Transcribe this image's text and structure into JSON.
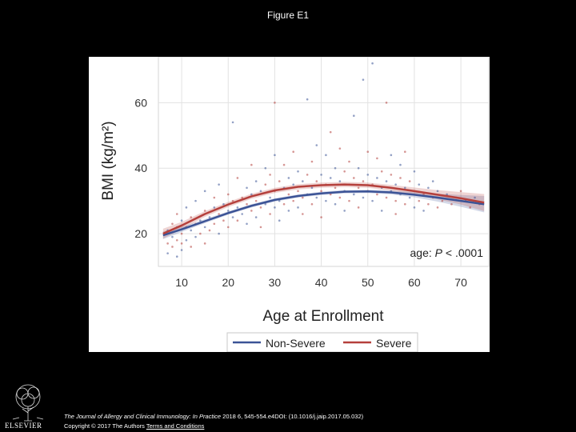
{
  "page": {
    "title": "Figure E1",
    "citation": {
      "journal": "The Journal of Allergy and Clinical Immunology: In Practice",
      "details": "2018 6, 545-554.e4DOI: (10.1016/j.jaip.2017.05.032)",
      "copyright": "Copyright © 2017 The Authors",
      "terms_link": "Terms and Conditions"
    },
    "publisher_logo": "ELSEVIER"
  },
  "chart_data": {
    "type": "scatter",
    "xlabel": "Age at Enrollment",
    "ylabel": "BMI (kg/m²)",
    "x_ticks": [
      10,
      20,
      30,
      40,
      50,
      60,
      70
    ],
    "y_ticks": [
      20,
      40,
      60
    ],
    "xlim": [
      5,
      76
    ],
    "ylim": [
      10,
      74
    ],
    "grid": true,
    "annotation": {
      "prefix": "age: ",
      "stat": "P",
      "rest": " < .0001"
    },
    "legend": {
      "placement": "bottom",
      "entries": [
        "Non-Severe",
        "Severe"
      ]
    },
    "colors": {
      "Non-Severe": "#3b5396",
      "Severe": "#b5403c"
    },
    "series": [
      {
        "name": "Non-Severe",
        "fit_x": [
          6,
          10,
          15,
          20,
          25,
          30,
          35,
          40,
          45,
          50,
          55,
          60,
          65,
          70,
          75
        ],
        "fit_y": [
          19.5,
          21.3,
          23.8,
          26.3,
          28.5,
          30.3,
          31.5,
          32.3,
          32.8,
          32.9,
          32.6,
          31.9,
          31.0,
          30.0,
          29.0
        ],
        "ci_half_width": [
          1.2,
          0.8,
          0.6,
          0.5,
          0.5,
          0.5,
          0.5,
          0.5,
          0.5,
          0.5,
          0.6,
          0.8,
          1.2,
          1.8,
          2.5
        ]
      },
      {
        "name": "Severe",
        "fit_x": [
          6,
          10,
          15,
          20,
          25,
          30,
          35,
          40,
          45,
          50,
          55,
          60,
          65,
          70,
          75
        ],
        "fit_y": [
          20.0,
          22.5,
          26.0,
          28.9,
          31.4,
          33.2,
          34.3,
          34.8,
          35.0,
          34.8,
          34.0,
          33.0,
          31.9,
          30.8,
          29.5
        ],
        "ci_half_width": [
          1.5,
          1.1,
          0.9,
          0.8,
          0.8,
          0.8,
          0.8,
          0.8,
          0.8,
          0.8,
          0.9,
          1.1,
          1.4,
          1.9,
          2.6
        ]
      }
    ],
    "scatter_points": [
      [
        7,
        14
      ],
      [
        7,
        17
      ],
      [
        7,
        21
      ],
      [
        8,
        16
      ],
      [
        8,
        19
      ],
      [
        8,
        23
      ],
      [
        9,
        13
      ],
      [
        9,
        18
      ],
      [
        9,
        22
      ],
      [
        9,
        26
      ],
      [
        10,
        15
      ],
      [
        10,
        20
      ],
      [
        10,
        24
      ],
      [
        10,
        17
      ],
      [
        11,
        18
      ],
      [
        11,
        22
      ],
      [
        11,
        28
      ],
      [
        12,
        16
      ],
      [
        12,
        21
      ],
      [
        12,
        25
      ],
      [
        13,
        19
      ],
      [
        13,
        23
      ],
      [
        13,
        30
      ],
      [
        14,
        20
      ],
      [
        14,
        24
      ],
      [
        15,
        17
      ],
      [
        15,
        22
      ],
      [
        15,
        27
      ],
      [
        15,
        33
      ],
      [
        16,
        21
      ],
      [
        16,
        25
      ],
      [
        17,
        23
      ],
      [
        17,
        28
      ],
      [
        17,
        31
      ],
      [
        18,
        20
      ],
      [
        18,
        26
      ],
      [
        18,
        35
      ],
      [
        19,
        24
      ],
      [
        19,
        29
      ],
      [
        20,
        22
      ],
      [
        20,
        27
      ],
      [
        20,
        32
      ],
      [
        21,
        25
      ],
      [
        21,
        30
      ],
      [
        21,
        54
      ],
      [
        22,
        24
      ],
      [
        22,
        28
      ],
      [
        22,
        37
      ],
      [
        23,
        26
      ],
      [
        23,
        31
      ],
      [
        24,
        23
      ],
      [
        24,
        29
      ],
      [
        24,
        34
      ],
      [
        25,
        27
      ],
      [
        25,
        32
      ],
      [
        25,
        41
      ],
      [
        26,
        25
      ],
      [
        26,
        30
      ],
      [
        26,
        36
      ],
      [
        27,
        28
      ],
      [
        27,
        33
      ],
      [
        27,
        22
      ],
      [
        28,
        29
      ],
      [
        28,
        35
      ],
      [
        28,
        40
      ],
      [
        29,
        26
      ],
      [
        29,
        31
      ],
      [
        29,
        38
      ],
      [
        30,
        28
      ],
      [
        30,
        33
      ],
      [
        30,
        44
      ],
      [
        30,
        60
      ],
      [
        31,
        30
      ],
      [
        31,
        36
      ],
      [
        31,
        24
      ],
      [
        32,
        29
      ],
      [
        32,
        34
      ],
      [
        32,
        41
      ],
      [
        33,
        27
      ],
      [
        33,
        32
      ],
      [
        33,
        37
      ],
      [
        34,
        30
      ],
      [
        34,
        35
      ],
      [
        34,
        45
      ],
      [
        35,
        28
      ],
      [
        35,
        33
      ],
      [
        35,
        39
      ],
      [
        36,
        31
      ],
      [
        36,
        36
      ],
      [
        36,
        26
      ],
      [
        37,
        32
      ],
      [
        37,
        38
      ],
      [
        37,
        61
      ],
      [
        38,
        29
      ],
      [
        38,
        34
      ],
      [
        38,
        42
      ],
      [
        39,
        31
      ],
      [
        39,
        36
      ],
      [
        39,
        47
      ],
      [
        40,
        33
      ],
      [
        40,
        38
      ],
      [
        40,
        25
      ],
      [
        41,
        30
      ],
      [
        41,
        35
      ],
      [
        41,
        44
      ],
      [
        42,
        32
      ],
      [
        42,
        37
      ],
      [
        42,
        51
      ],
      [
        43,
        29
      ],
      [
        43,
        34
      ],
      [
        43,
        40
      ],
      [
        44,
        31
      ],
      [
        44,
        36
      ],
      [
        44,
        46
      ],
      [
        45,
        33
      ],
      [
        45,
        39
      ],
      [
        45,
        27
      ],
      [
        46,
        30
      ],
      [
        46,
        35
      ],
      [
        46,
        42
      ],
      [
        47,
        32
      ],
      [
        47,
        37
      ],
      [
        47,
        56
      ],
      [
        48,
        34
      ],
      [
        48,
        40
      ],
      [
        48,
        28
      ],
      [
        49,
        31
      ],
      [
        49,
        36
      ],
      [
        49,
        67
      ],
      [
        50,
        33
      ],
      [
        50,
        38
      ],
      [
        50,
        45
      ],
      [
        51,
        30
      ],
      [
        51,
        35
      ],
      [
        51,
        72
      ],
      [
        52,
        32
      ],
      [
        52,
        37
      ],
      [
        52,
        43
      ],
      [
        53,
        34
      ],
      [
        53,
        39
      ],
      [
        53,
        27
      ],
      [
        54,
        31
      ],
      [
        54,
        36
      ],
      [
        54,
        60
      ],
      [
        55,
        33
      ],
      [
        55,
        38
      ],
      [
        55,
        44
      ],
      [
        56,
        30
      ],
      [
        56,
        35
      ],
      [
        56,
        26
      ],
      [
        57,
        32
      ],
      [
        57,
        37
      ],
      [
        57,
        41
      ],
      [
        58,
        29
      ],
      [
        58,
        34
      ],
      [
        58,
        45
      ],
      [
        59,
        31
      ],
      [
        59,
        36
      ],
      [
        60,
        28
      ],
      [
        60,
        33
      ],
      [
        60,
        39
      ],
      [
        61,
        30
      ],
      [
        61,
        35
      ],
      [
        62,
        32
      ],
      [
        62,
        27
      ],
      [
        63,
        29
      ],
      [
        63,
        34
      ],
      [
        64,
        31
      ],
      [
        64,
        36
      ],
      [
        65,
        28
      ],
      [
        65,
        33
      ],
      [
        66,
        30
      ],
      [
        67,
        32
      ],
      [
        68,
        29
      ],
      [
        69,
        31
      ],
      [
        70,
        33
      ],
      [
        71,
        30
      ],
      [
        72,
        28
      ],
      [
        73,
        31
      ],
      [
        74,
        29
      ]
    ]
  }
}
